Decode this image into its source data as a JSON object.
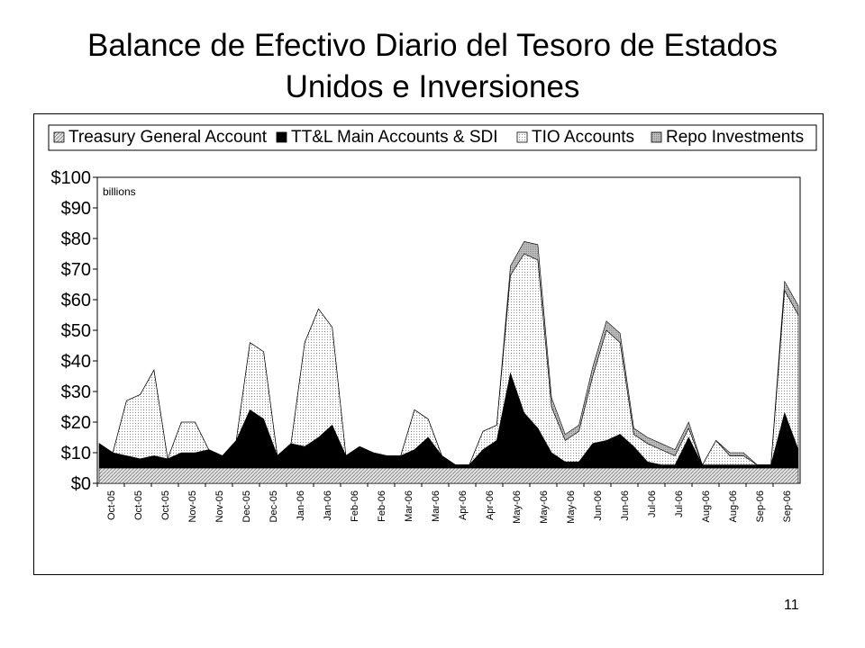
{
  "slide": {
    "title_line1": "Balance de Efectivo Diario del Tesoro de Estados",
    "title_line2": "Unidos e Inversiones",
    "page_number": "11"
  },
  "chart_data": {
    "type": "area",
    "stacked": true,
    "title": "",
    "unit_note": "billions",
    "xlabel": "",
    "ylabel": "",
    "ylim": [
      0,
      100
    ],
    "yticks": [
      "$0",
      "$10",
      "$20",
      "$30",
      "$40",
      "$50",
      "$60",
      "$70",
      "$80",
      "$90",
      "$100"
    ],
    "categories": [
      "Oct-05",
      "Oct-05",
      "Oct-05",
      "Nov-05",
      "Nov-05",
      "Dec-05",
      "Dec-05",
      "Jan-06",
      "Jan-06",
      "Feb-06",
      "Feb-06",
      "Mar-06",
      "Mar-06",
      "Apr-06",
      "Apr-06",
      "May-06",
      "May-06",
      "May-06",
      "Jun-06",
      "Jun-06",
      "Jul-06",
      "Jul-06",
      "Aug-06",
      "Aug-06",
      "Sep-06",
      "Sep-06"
    ],
    "legend_position": "top",
    "colors": {
      "Treasury General Account": "#d4d4d4",
      "TT&L Main Accounts & SDI": "#000000",
      "TIO Accounts": "#f4f4f4",
      "Repo Investments": "#a8a8a8"
    },
    "x": [
      "Oct-05",
      "",
      "Oct-05",
      "",
      "Oct-05",
      "",
      "Nov-05",
      "",
      "Nov-05",
      "",
      "Dec-05",
      "",
      "Dec-05",
      "",
      "Jan-06",
      "",
      "Jan-06",
      "",
      "Feb-06",
      "",
      "Feb-06",
      "",
      "Mar-06",
      "",
      "Mar-06",
      "",
      "Apr-06",
      "",
      "Apr-06",
      "",
      "May-06",
      "",
      "May-06",
      "",
      "May-06",
      "",
      "Jun-06",
      "",
      "Jun-06",
      "",
      "Jul-06",
      "",
      "Jul-06",
      "",
      "Aug-06",
      "",
      "Aug-06",
      "",
      "Sep-06",
      "",
      "Sep-06",
      ""
    ],
    "series": [
      {
        "name": "Treasury General Account",
        "values": [
          5,
          5,
          5,
          5,
          5,
          5,
          5,
          5,
          5,
          5,
          5,
          5,
          5,
          5,
          5,
          5,
          5,
          5,
          5,
          5,
          5,
          5,
          5,
          5,
          5,
          5,
          5,
          5,
          5,
          5,
          5,
          5,
          5,
          5,
          5,
          5,
          5,
          5,
          5,
          5,
          5,
          5,
          5,
          5,
          5,
          5,
          5,
          5,
          5,
          5,
          5,
          5
        ]
      },
      {
        "name": "TT&L Main Accounts & SDI",
        "values": [
          8,
          5,
          4,
          3,
          4,
          3,
          5,
          5,
          6,
          4,
          9,
          19,
          16,
          4,
          8,
          7,
          10,
          14,
          4,
          7,
          5,
          4,
          4,
          6,
          10,
          4,
          1,
          1,
          6,
          9,
          31,
          18,
          13,
          5,
          2,
          2,
          8,
          9,
          11,
          7,
          2,
          1,
          1,
          10,
          1,
          1,
          1,
          1,
          1,
          1,
          18,
          6
        ]
      },
      {
        "name": "TIO Accounts",
        "values": [
          0,
          0,
          18,
          21,
          28,
          0,
          10,
          10,
          0,
          0,
          0,
          22,
          22,
          0,
          0,
          34,
          42,
          32,
          0,
          0,
          0,
          0,
          0,
          13,
          6,
          0,
          0,
          0,
          6,
          5,
          32,
          52,
          55,
          15,
          7,
          10,
          22,
          36,
          30,
          4,
          6,
          5,
          3,
          3,
          0,
          8,
          3,
          3,
          0,
          0,
          40,
          44
        ]
      },
      {
        "name": "Repo Investments",
        "values": [
          0,
          0,
          0,
          0,
          0,
          0,
          0,
          0,
          0,
          0,
          0,
          0,
          0,
          0,
          0,
          0,
          0,
          0,
          0,
          0,
          0,
          0,
          0,
          0,
          0,
          0,
          0,
          0,
          0,
          0,
          3,
          4,
          5,
          3,
          2,
          2,
          3,
          3,
          3,
          2,
          2,
          2,
          2,
          2,
          0,
          0,
          1,
          1,
          0,
          0,
          3,
          3
        ]
      }
    ]
  }
}
